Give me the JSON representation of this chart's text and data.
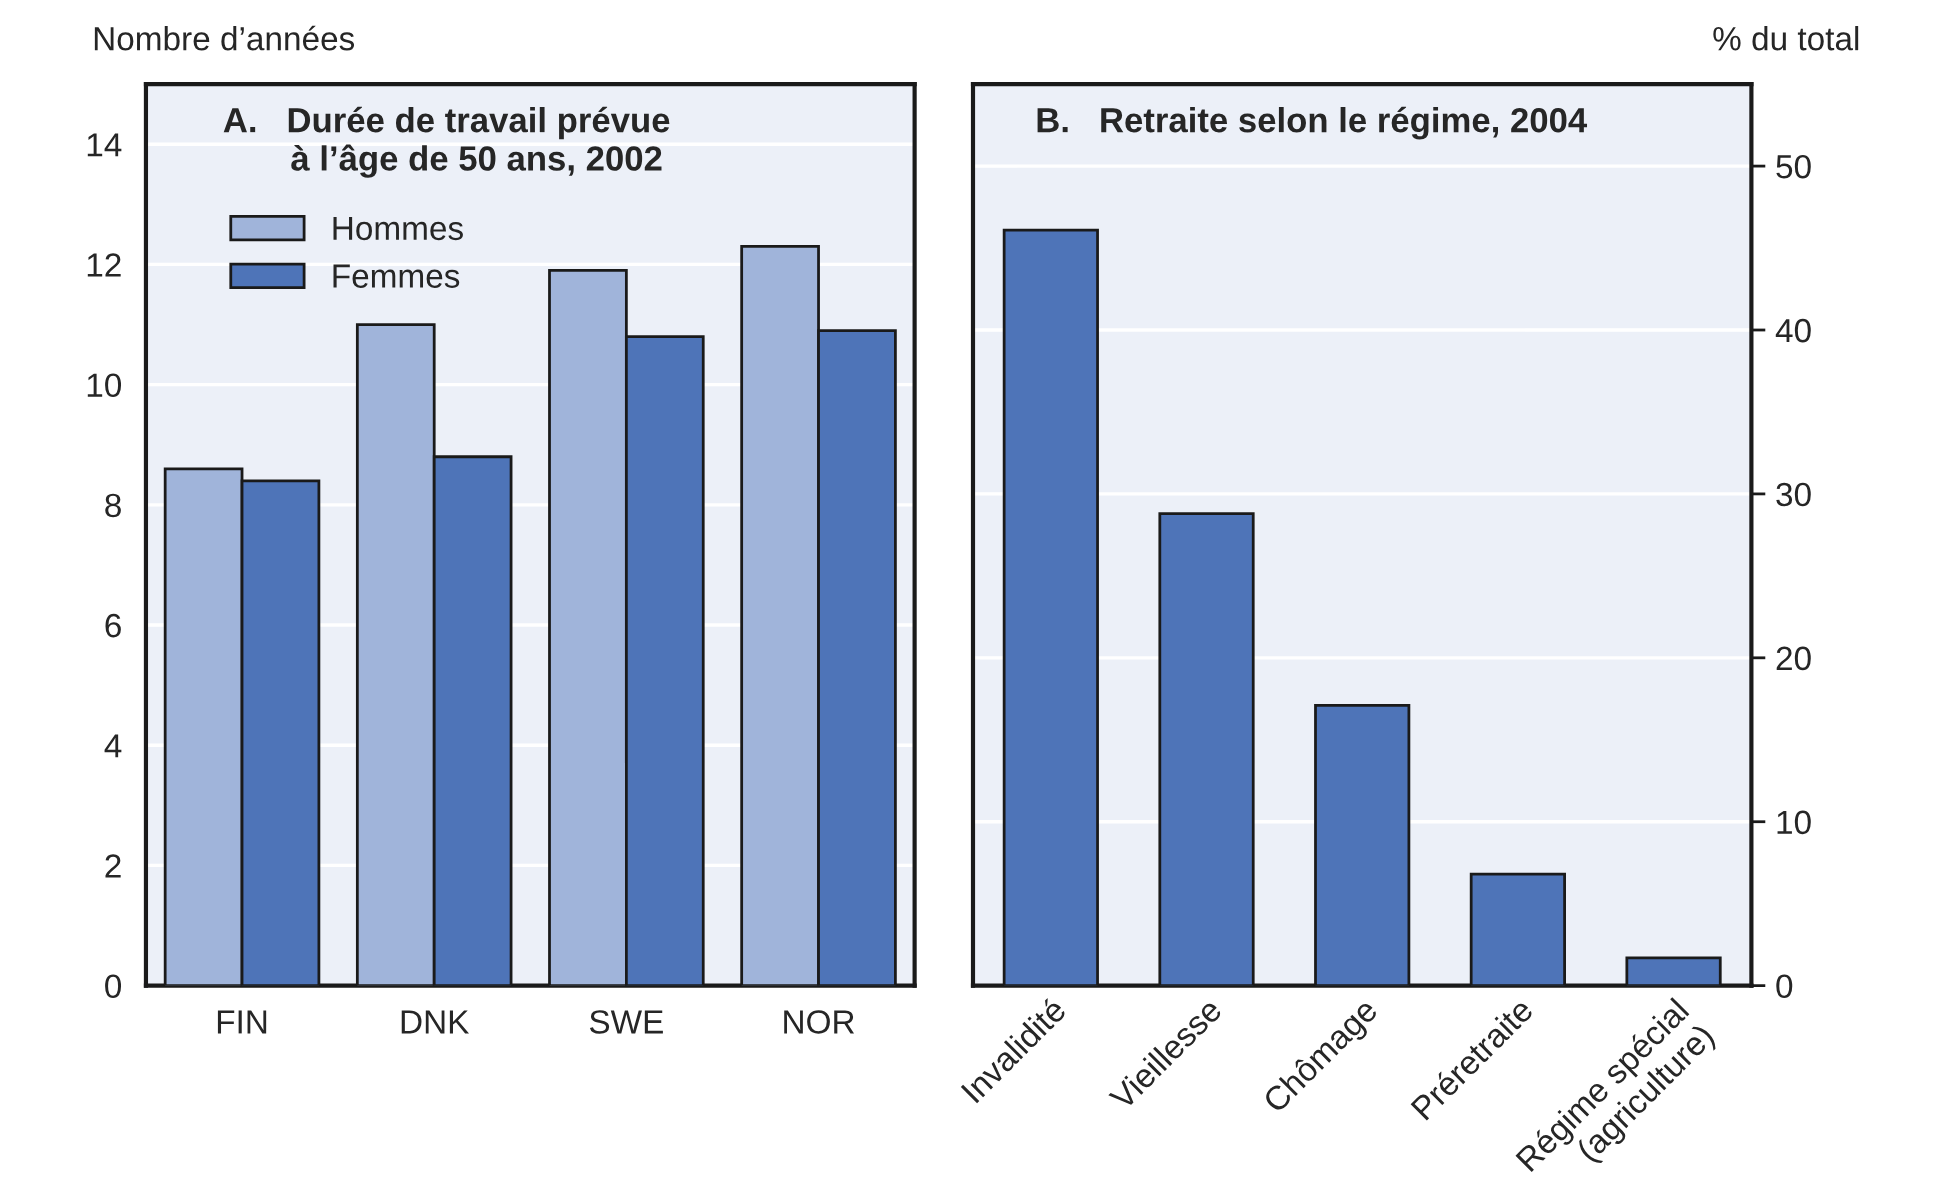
{
  "chart_data": [
    {
      "type": "bar",
      "title": "A.   Durée de travail prévue\n       à l’âge de 50 ans, 2002",
      "ylabel": "Nombre d’années",
      "categories": [
        "FIN",
        "DNK",
        "SWE",
        "NOR"
      ],
      "series": [
        {
          "name": "Hommes",
          "color": "#a0b4da",
          "values": [
            8.6,
            11.0,
            11.9,
            12.3
          ]
        },
        {
          "name": "Femmes",
          "color": "#4e74b8",
          "values": [
            8.4,
            8.8,
            10.8,
            10.9
          ]
        }
      ],
      "ylim": [
        0,
        15
      ],
      "yticks": [
        0,
        2,
        4,
        6,
        8,
        10,
        12,
        14
      ],
      "grid": "y",
      "legend": "top left"
    },
    {
      "type": "bar",
      "title": "B.   Retraite selon le régime, 2004",
      "ylabel": "% du total",
      "categories": [
        "Invalidité",
        "Vieillesse",
        "Chômage",
        "Préretraite",
        "Régime spécial\n(agriculture)"
      ],
      "series": [
        {
          "color": "#4e74b8",
          "values": [
            46.1,
            28.8,
            17.1,
            6.8,
            1.7
          ]
        }
      ],
      "ylim": [
        0,
        55
      ],
      "yticks": [
        0,
        10,
        20,
        30,
        40,
        50
      ],
      "grid": "y",
      "legend": false
    }
  ]
}
